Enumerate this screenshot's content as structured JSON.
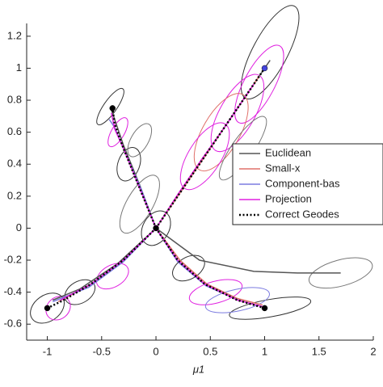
{
  "chart_data": {
    "type": "line",
    "xlabel": "μ1",
    "xlim": [
      -1.19,
      2
    ],
    "ylim": [
      -0.7,
      1.28
    ],
    "xticks": [
      -1,
      -0.5,
      0,
      0.5,
      1,
      1.5,
      2
    ],
    "yticks": [
      -0.6,
      -0.4,
      -0.2,
      0,
      0.2,
      0.4,
      0.6,
      0.8,
      1,
      1.2
    ],
    "legend": "right",
    "series": [
      {
        "name": "Euclidean",
        "color": "#555555",
        "style": "solid",
        "x": [
          0,
          0.4,
          0.9,
          1.3,
          1.7,
          null,
          0,
          0.35,
          0.7,
          1.05,
          null,
          0,
          -0.15,
          -0.3,
          -0.42,
          null,
          0,
          -0.35,
          -0.7,
          -0.95
        ],
        "values": [
          0,
          -0.2,
          -0.27,
          -0.28,
          -0.28,
          null,
          0,
          0.35,
          0.7,
          1.05,
          null,
          0,
          0.27,
          0.52,
          0.76,
          null,
          0,
          -0.22,
          -0.38,
          -0.45
        ]
      },
      {
        "name": "Small-x",
        "color": "#e0706a",
        "style": "solid",
        "x": [
          0,
          0.22,
          0.47,
          0.75,
          0.98,
          null,
          0,
          0.22,
          0.45,
          0.68,
          0.95,
          null,
          0,
          -0.3,
          -0.62,
          -0.9
        ],
        "values": [
          0,
          -0.2,
          -0.35,
          -0.44,
          -0.48,
          null,
          0,
          0.22,
          0.45,
          0.68,
          0.95,
          null,
          0,
          -0.2,
          -0.36,
          -0.46
        ]
      },
      {
        "name": "Component-bas",
        "color": "#7b7be0",
        "style": "solid",
        "x": [
          0,
          0.2,
          0.46,
          0.76,
          0.97,
          null,
          0,
          -0.14,
          -0.3,
          -0.38,
          -0.43,
          null,
          0,
          -0.3,
          -0.62,
          -0.95
        ],
        "values": [
          0,
          -0.21,
          -0.36,
          -0.45,
          -0.49,
          null,
          0,
          0.25,
          0.5,
          0.63,
          0.68,
          null,
          0,
          -0.21,
          -0.37,
          -0.46
        ]
      },
      {
        "name": "Projection",
        "color": "#e020e0",
        "style": "solid",
        "x": [
          0,
          0.2,
          0.45,
          0.75,
          0.98,
          null,
          0,
          0.2,
          0.42,
          0.64,
          0.9,
          null,
          0,
          -0.15,
          -0.3,
          -0.38,
          -0.41,
          null,
          0,
          -0.3,
          -0.6,
          -0.88
        ],
        "values": [
          0,
          -0.2,
          -0.35,
          -0.45,
          -0.49,
          null,
          0,
          0.21,
          0.43,
          0.64,
          0.9,
          null,
          0,
          0.25,
          0.5,
          0.62,
          0.72,
          null,
          0,
          -0.2,
          -0.35,
          -0.45
        ]
      },
      {
        "name": "Correct Geodes",
        "color": "#000000",
        "style": "dotted",
        "x": [
          0,
          0.2,
          0.45,
          0.75,
          1,
          null,
          0,
          0.2,
          0.4,
          0.6,
          0.8,
          1,
          null,
          0,
          -0.15,
          -0.3,
          -0.38,
          -0.4,
          null,
          0,
          -0.3,
          -0.6,
          -0.85,
          -1
        ],
        "values": [
          0,
          -0.2,
          -0.35,
          -0.45,
          -0.5,
          null,
          0,
          0.2,
          0.4,
          0.6,
          0.8,
          1,
          null,
          0,
          0.25,
          0.5,
          0.65,
          0.75,
          null,
          0,
          -0.2,
          -0.35,
          -0.45,
          -0.5
        ]
      }
    ],
    "ellipses": [
      {
        "color": "#333333",
        "cx": 1.05,
        "cy": 1.1,
        "rx": 0.48,
        "ry": 0.16,
        "angle": -62
      },
      {
        "color": "#e020e0",
        "cx": 0.95,
        "cy": 0.9,
        "rx": 0.4,
        "ry": 0.14,
        "angle": -62
      },
      {
        "color": "#e020e0",
        "cx": 0.75,
        "cy": 0.72,
        "rx": 0.4,
        "ry": 0.16,
        "angle": -60
      },
      {
        "color": "#e0706a",
        "cx": 0.6,
        "cy": 0.6,
        "rx": 0.4,
        "ry": 0.17,
        "angle": -60
      },
      {
        "color": "#e020e0",
        "cx": 0.45,
        "cy": 0.45,
        "rx": 0.35,
        "ry": 0.15,
        "angle": -58
      },
      {
        "color": "#777777",
        "cx": 0.8,
        "cy": 0.5,
        "rx": 0.35,
        "ry": 0.1,
        "angle": -55
      },
      {
        "color": "#777777",
        "cx": -0.15,
        "cy": 0.15,
        "rx": 0.3,
        "ry": 0.12,
        "angle": -60
      },
      {
        "color": "#333333",
        "cx": 0,
        "cy": 0,
        "rx": 0.17,
        "ry": 0.12,
        "angle": -60
      },
      {
        "color": "#333333",
        "cx": -0.25,
        "cy": 0.4,
        "rx": 0.16,
        "ry": 0.1,
        "angle": -70
      },
      {
        "color": "#e020e0",
        "cx": -0.35,
        "cy": 0.6,
        "rx": 0.15,
        "ry": 0.06,
        "angle": -60
      },
      {
        "color": "#333333",
        "cx": -0.42,
        "cy": 0.76,
        "rx": 0.2,
        "ry": 0.06,
        "angle": -55
      },
      {
        "color": "#777777",
        "cx": -0.15,
        "cy": 0.55,
        "rx": 0.17,
        "ry": 0.08,
        "angle": -60
      },
      {
        "color": "#e020e0",
        "cx": -0.4,
        "cy": -0.3,
        "rx": 0.16,
        "ry": 0.1,
        "angle": -30
      },
      {
        "color": "#333333",
        "cx": -0.7,
        "cy": -0.4,
        "rx": 0.15,
        "ry": 0.1,
        "angle": -30
      },
      {
        "color": "#333333",
        "cx": -1,
        "cy": -0.5,
        "rx": 0.17,
        "ry": 0.12,
        "angle": -35
      },
      {
        "color": "#e020e0",
        "cx": -0.9,
        "cy": -0.5,
        "rx": 0.12,
        "ry": 0.1,
        "angle": -40
      },
      {
        "color": "#333333",
        "cx": 0.3,
        "cy": -0.25,
        "rx": 0.16,
        "ry": 0.1,
        "angle": -30
      },
      {
        "color": "#e020e0",
        "cx": 0.55,
        "cy": -0.4,
        "rx": 0.25,
        "ry": 0.1,
        "angle": -15
      },
      {
        "color": "#333333",
        "cx": 1.05,
        "cy": -0.5,
        "rx": 0.38,
        "ry": 0.08,
        "angle": -10
      },
      {
        "color": "#777777",
        "cx": 1.7,
        "cy": -0.28,
        "rx": 0.3,
        "ry": 0.12,
        "angle": -15
      },
      {
        "color": "#7b7be0",
        "cx": 0.75,
        "cy": -0.45,
        "rx": 0.3,
        "ry": 0.1,
        "angle": -12
      }
    ],
    "points": [
      {
        "color": "#000000",
        "x": 0,
        "y": 0
      },
      {
        "color": "#000000",
        "x": -0.4,
        "y": 0.75
      },
      {
        "color": "#000000",
        "x": -1,
        "y": -0.5
      },
      {
        "color": "#000000",
        "x": 1,
        "y": -0.5
      },
      {
        "color": "#4444dd",
        "x": 1,
        "y": 1
      }
    ]
  }
}
